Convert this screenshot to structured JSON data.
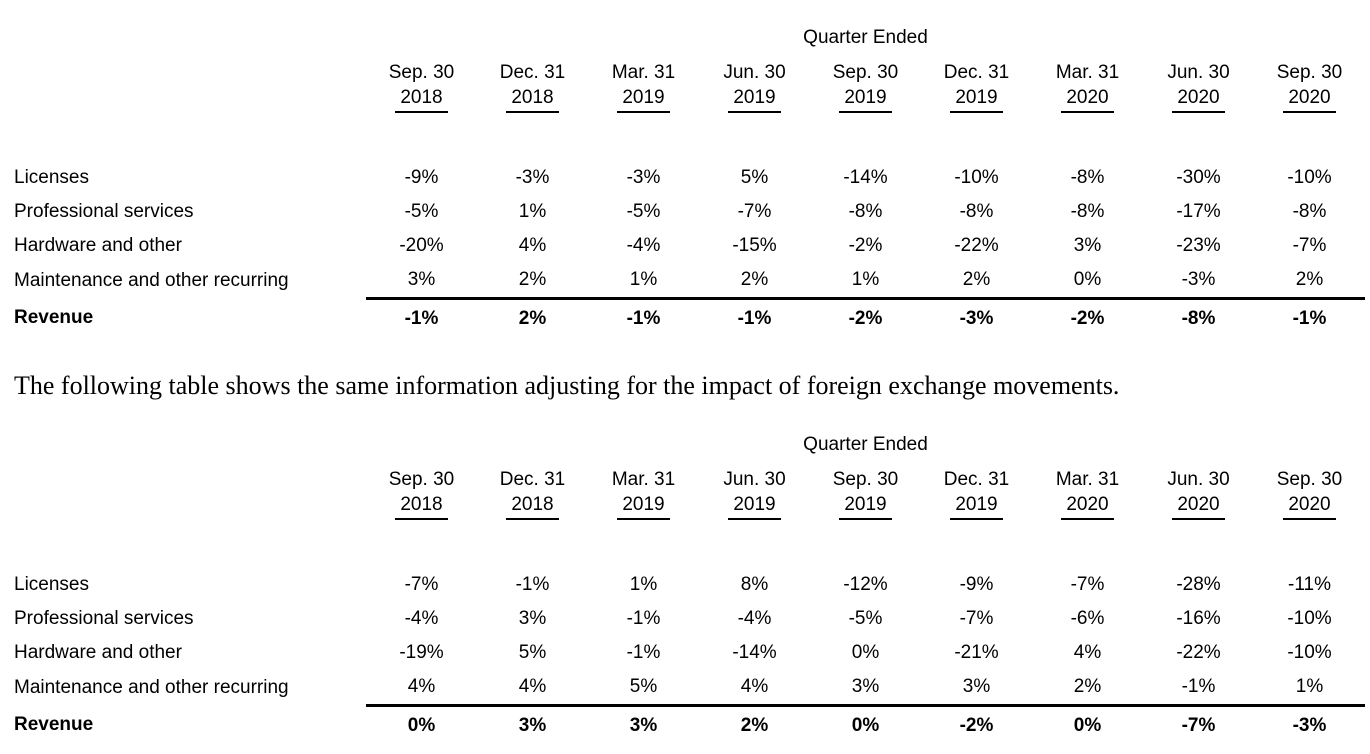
{
  "intro_text": "The following table shows the same information adjusting for the impact of foreign exchange movements.",
  "colors": {
    "text": "#000000",
    "background": "#ffffff",
    "rule": "#000000"
  },
  "tables": [
    {
      "title": "Quarter Ended",
      "columns": [
        {
          "period": "Sep. 30",
          "year": "2018"
        },
        {
          "period": "Dec. 31",
          "year": "2018"
        },
        {
          "period": "Mar. 31",
          "year": "2019"
        },
        {
          "period": "Jun. 30",
          "year": "2019"
        },
        {
          "period": "Sep. 30",
          "year": "2019"
        },
        {
          "period": "Dec. 31",
          "year": "2019"
        },
        {
          "period": "Mar. 31",
          "year": "2020"
        },
        {
          "period": "Jun. 30",
          "year": "2020"
        },
        {
          "period": "Sep. 30",
          "year": "2020"
        }
      ],
      "rows": [
        {
          "label": "Licenses",
          "bold": false,
          "values": [
            "-9%",
            "-3%",
            "-3%",
            "5%",
            "-14%",
            "-10%",
            "-8%",
            "-30%",
            "-10%"
          ]
        },
        {
          "label": "Professional services",
          "bold": false,
          "values": [
            "-5%",
            "1%",
            "-5%",
            "-7%",
            "-8%",
            "-8%",
            "-8%",
            "-17%",
            "-8%"
          ]
        },
        {
          "label": "Hardware and other",
          "bold": false,
          "values": [
            "-20%",
            "4%",
            "-4%",
            "-15%",
            "-2%",
            "-22%",
            "3%",
            "-23%",
            "-7%"
          ]
        },
        {
          "label": "Maintenance and other recurring",
          "bold": false,
          "values": [
            "3%",
            "2%",
            "1%",
            "2%",
            "1%",
            "2%",
            "0%",
            "-3%",
            "2%"
          ]
        },
        {
          "label": "Revenue",
          "bold": true,
          "values": [
            "-1%",
            "2%",
            "-1%",
            "-1%",
            "-2%",
            "-3%",
            "-2%",
            "-8%",
            "-1%"
          ]
        }
      ]
    },
    {
      "title": "Quarter Ended",
      "columns": [
        {
          "period": "Sep. 30",
          "year": "2018"
        },
        {
          "period": "Dec. 31",
          "year": "2018"
        },
        {
          "period": "Mar. 31",
          "year": "2019"
        },
        {
          "period": "Jun. 30",
          "year": "2019"
        },
        {
          "period": "Sep. 30",
          "year": "2019"
        },
        {
          "period": "Dec. 31",
          "year": "2019"
        },
        {
          "period": "Mar. 31",
          "year": "2020"
        },
        {
          "period": "Jun. 30",
          "year": "2020"
        },
        {
          "period": "Sep. 30",
          "year": "2020"
        }
      ],
      "rows": [
        {
          "label": "Licenses",
          "bold": false,
          "values": [
            "-7%",
            "-1%",
            "1%",
            "8%",
            "-12%",
            "-9%",
            "-7%",
            "-28%",
            "-11%"
          ]
        },
        {
          "label": "Professional services",
          "bold": false,
          "values": [
            "-4%",
            "3%",
            "-1%",
            "-4%",
            "-5%",
            "-7%",
            "-6%",
            "-16%",
            "-10%"
          ]
        },
        {
          "label": "Hardware and other",
          "bold": false,
          "values": [
            "-19%",
            "5%",
            "-1%",
            "-14%",
            "0%",
            "-21%",
            "4%",
            "-22%",
            "-10%"
          ]
        },
        {
          "label": "Maintenance and other recurring",
          "bold": false,
          "values": [
            "4%",
            "4%",
            "5%",
            "4%",
            "3%",
            "3%",
            "2%",
            "-1%",
            "1%"
          ]
        },
        {
          "label": "Revenue",
          "bold": true,
          "values": [
            "0%",
            "3%",
            "3%",
            "2%",
            "0%",
            "-2%",
            "0%",
            "-7%",
            "-3%"
          ]
        }
      ]
    }
  ]
}
